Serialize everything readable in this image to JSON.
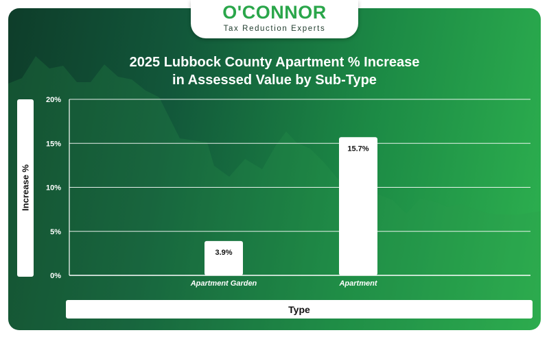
{
  "brand": {
    "name": "O'CONNOR",
    "tagline": "Tax Reduction Experts",
    "accent": "#2aa64a"
  },
  "chart_data": {
    "type": "bar",
    "title": "2025 Lubbock County Apartment % Increase in Assessed Value by Sub-Type",
    "title_lines": [
      "2025 Lubbock County Apartment % Increase",
      "in Assessed Value by Sub-Type"
    ],
    "xlabel": "Type",
    "ylabel": "Increase %",
    "categories": [
      "Apartment Garden",
      "Apartment"
    ],
    "values": [
      3.9,
      15.7
    ],
    "data_labels": [
      "3.9%",
      "15.7%"
    ],
    "ylim": [
      0,
      20
    ],
    "yticks": [
      0,
      5,
      10,
      15,
      20
    ],
    "ytick_labels": [
      "0%",
      "5%",
      "10%",
      "15%",
      "20%"
    ],
    "grid": true,
    "bar_color": "#ffffff",
    "background_colors": [
      "#0e3d2a",
      "#2db14f"
    ]
  }
}
